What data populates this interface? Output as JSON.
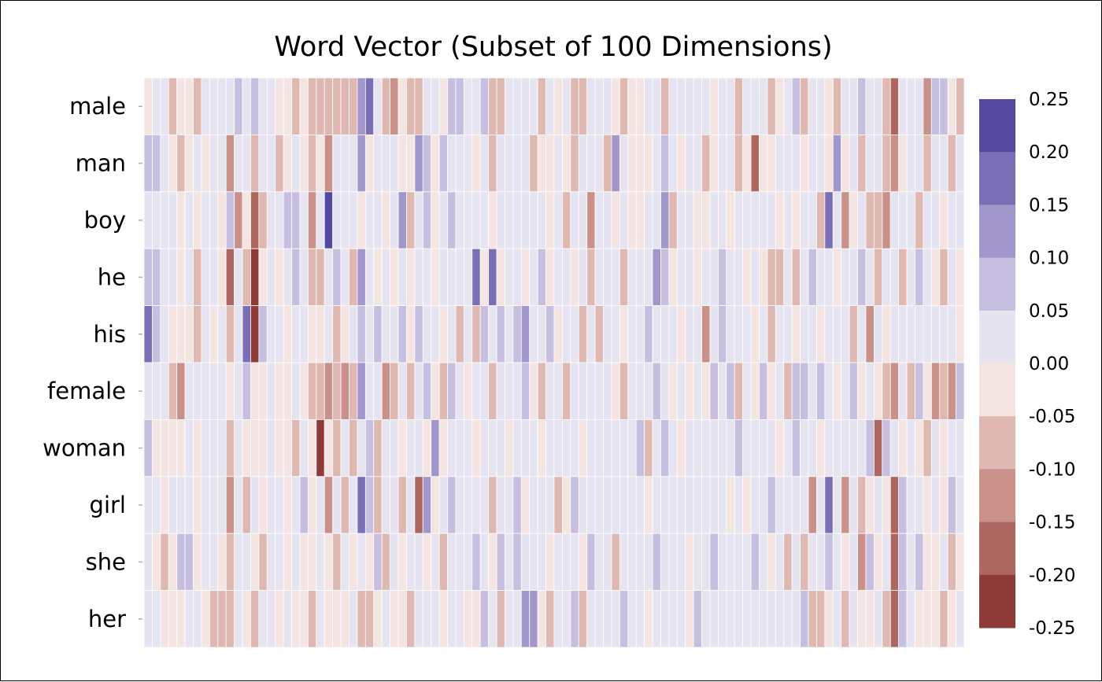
{
  "chart_data": {
    "type": "heatmap",
    "title": "Word Vector (Subset of 100 Dimensions)",
    "rows": [
      "male",
      "man",
      "boy",
      "he",
      "his",
      "female",
      "woman",
      "girl",
      "she",
      "her"
    ],
    "columns_count": 100,
    "values": [
      [
        0.0,
        0.02,
        0.02,
        -0.06,
        0.0,
        -0.04,
        -0.08,
        0.02,
        0.03,
        0.05,
        0.02,
        0.06,
        0.03,
        0.09,
        0.04,
        0.01,
        -0.02,
        -0.03,
        -0.07,
        -0.03,
        -0.05,
        -0.06,
        -0.08,
        -0.08,
        -0.07,
        -0.07,
        0.15,
        0.19,
        0.05,
        -0.08,
        -0.11,
        -0.02,
        -0.07,
        -0.06,
        0.04,
        0.02,
        0.0,
        0.06,
        0.06,
        0.01,
        0.03,
        0.06,
        -0.06,
        -0.05,
        0.03,
        0.02,
        0.02,
        0.02,
        -0.06,
        0.04,
        -0.01,
        0.03,
        -0.06,
        -0.05,
        0.02,
        0.01,
        0.01,
        -0.03,
        -0.06,
        -0.04,
        -0.01,
        0.03,
        0.04,
        -0.06,
        0.02,
        0.02,
        0.01,
        0.01,
        0.04,
        -0.02,
        0.02,
        0.03,
        -0.06,
        0.01,
        0.01,
        0.03,
        -0.07,
        0.0,
        0.04,
        0.06,
        -0.05,
        0.03,
        0.02,
        -0.04,
        -0.06,
        0.03,
        0.02,
        0.07,
        0.01,
        0.05,
        -0.06,
        -0.19,
        0.03,
        0.05,
        0.04,
        -0.1,
        0.06,
        0.07,
        -0.04,
        -0.07
      ],
      [
        0.08,
        0.06,
        0.01,
        -0.04,
        -0.06,
        -0.02,
        0.05,
        -0.03,
        0.01,
        0.02,
        -0.11,
        0.02,
        0.03,
        -0.05,
        0.04,
        0.01,
        -0.08,
        -0.04,
        0.01,
        -0.03,
        -0.09,
        -0.04,
        -0.13,
        0.01,
        0.04,
        0.02,
        0.13,
        -0.03,
        0.05,
        0.05,
        0.03,
        -0.02,
        -0.02,
        0.11,
        0.06,
        -0.03,
        0.07,
        0.03,
        0.02,
        0.03,
        -0.04,
        0.04,
        -0.06,
        0.02,
        0.01,
        0.02,
        0.04,
        -0.05,
        -0.02,
        -0.04,
        0.02,
        -0.02,
        -0.05,
        0.02,
        0.01,
        0.02,
        -0.05,
        0.12,
        0.01,
        -0.03,
        -0.02,
        0.0,
        0.02,
        0.06,
        0.02,
        -0.04,
        0.03,
        0.02,
        -0.06,
        -0.02,
        0.02,
        0.04,
        -0.06,
        -0.02,
        -0.15,
        -0.02,
        -0.04,
        0.02,
        0.04,
        0.02,
        -0.03,
        0.04,
        0.01,
        -0.04,
        0.13,
        -0.02,
        0.03,
        -0.09,
        0.01,
        0.02,
        -0.06,
        -0.14,
        -0.03,
        0.05,
        0.02,
        -0.05,
        0.01,
        0.03,
        -0.05,
        0.02
      ],
      [
        0.05,
        0.02,
        0.03,
        0.01,
        -0.02,
        0.02,
        -0.03,
        0.01,
        0.03,
        -0.02,
        0.1,
        -0.14,
        -0.02,
        -0.16,
        -0.06,
        0.04,
        0.03,
        0.07,
        0.06,
        0.02,
        -0.11,
        0.02,
        0.24,
        0.05,
        0.02,
        0.02,
        -0.03,
        0.02,
        0.02,
        -0.04,
        0.03,
        0.13,
        -0.05,
        0.02,
        0.09,
        -0.03,
        0.05,
        0.09,
        0.02,
        0.01,
        0.05,
        0.03,
        -0.02,
        0.03,
        0.01,
        0.03,
        0.02,
        0.01,
        0.04,
        -0.03,
        0.03,
        -0.05,
        0.02,
        0.02,
        -0.14,
        0.01,
        0.02,
        -0.01,
        0.02,
        -0.04,
        -0.02,
        0.03,
        0.04,
        0.12,
        -0.05,
        0.02,
        0.03,
        -0.02,
        -0.04,
        0.02,
        0.01,
        -0.04,
        0.02,
        0.03,
        0.03,
        0.02,
        0.02,
        -0.03,
        0.03,
        -0.04,
        0.04,
        0.03,
        -0.06,
        0.19,
        0.05,
        -0.12,
        -0.04,
        0.02,
        -0.05,
        -0.06,
        -0.1,
        0.02,
        0.02,
        0.02,
        -0.06,
        0.02,
        0.02,
        -0.02,
        0.02,
        0.01
      ],
      [
        0.1,
        0.06,
        0.01,
        0.02,
        -0.03,
        0.03,
        -0.06,
        0.05,
        0.01,
        -0.03,
        -0.15,
        0.02,
        -0.08,
        -0.2,
        -0.04,
        0.02,
        -0.03,
        0.03,
        0.06,
        0.02,
        -0.05,
        -0.05,
        0.03,
        0.06,
        0.02,
        -0.06,
        0.12,
        0.05,
        -0.04,
        0.04,
        -0.02,
        0.04,
        -0.03,
        0.02,
        0.03,
        -0.02,
        0.01,
        0.04,
        0.03,
        0.02,
        0.19,
        -0.02,
        0.16,
        -0.04,
        0.03,
        0.02,
        -0.03,
        0.01,
        0.07,
        -0.03,
        0.02,
        0.05,
        -0.02,
        0.02,
        -0.06,
        0.03,
        0.04,
        0.02,
        -0.05,
        0.02,
        0.01,
        0.02,
        0.11,
        0.1,
        -0.02,
        0.02,
        0.04,
        -0.03,
        0.03,
        0.03,
        0.06,
        0.02,
        0.04,
        -0.03,
        0.03,
        -0.02,
        -0.05,
        -0.08,
        0.02,
        -0.07,
        0.04,
        0.06,
        0.02,
        0.03,
        -0.03,
        0.02,
        0.04,
        0.06,
        0.03,
        -0.05,
        0.02,
        0.02,
        -0.06,
        0.05,
        0.07,
        0.02,
        -0.04,
        -0.07,
        0.03,
        -0.03
      ],
      [
        0.18,
        0.07,
        0.02,
        -0.02,
        -0.03,
        -0.04,
        -0.07,
        0.02,
        -0.04,
        0.02,
        -0.05,
        0.02,
        0.16,
        -0.2,
        0.06,
        0.02,
        0.01,
        -0.03,
        0.04,
        0.01,
        -0.04,
        -0.02,
        0.02,
        -0.06,
        -0.04,
        0.03,
        0.06,
        0.04,
        0.07,
        0.03,
        0.01,
        0.06,
        -0.03,
        0.06,
        0.02,
        0.01,
        -0.02,
        0.03,
        -0.06,
        0.02,
        -0.05,
        0.1,
        0.03,
        0.06,
        0.05,
        0.07,
        0.11,
        0.04,
        0.02,
        0.06,
        -0.03,
        0.01,
        0.02,
        -0.05,
        0.02,
        -0.07,
        0.04,
        0.01,
        -0.02,
        0.04,
        0.02,
        0.06,
        0.01,
        0.03,
        0.04,
        -0.02,
        0.04,
        0.02,
        -0.14,
        0.02,
        0.06,
        0.03,
        0.01,
        0.04,
        -0.02,
        0.02,
        -0.06,
        0.02,
        0.02,
        -0.03,
        0.02,
        0.04,
        -0.03,
        0.05,
        0.02,
        0.02,
        -0.06,
        0.01,
        -0.1,
        0.02,
        -0.02,
        0.03,
        0.01,
        0.02,
        0.03,
        0.05,
        0.02,
        0.02,
        0.04,
        -0.04
      ],
      [
        0.02,
        0.02,
        0.02,
        -0.06,
        -0.14,
        0.02,
        0.02,
        0.01,
        0.02,
        0.02,
        -0.02,
        0.02,
        0.06,
        -0.02,
        -0.03,
        0.02,
        -0.02,
        -0.03,
        0.01,
        -0.03,
        -0.05,
        -0.06,
        -0.1,
        -0.07,
        -0.12,
        -0.08,
        0.13,
        0.04,
        0.02,
        -0.1,
        -0.06,
        0.02,
        -0.05,
        0.04,
        0.06,
        -0.03,
        -0.06,
        0.06,
        0.02,
        -0.04,
        0.05,
        0.04,
        -0.07,
        0.02,
        0.02,
        0.04,
        0.06,
        -0.02,
        -0.06,
        0.02,
        0.05,
        -0.05,
        0.02,
        0.01,
        0.04,
        0.03,
        0.05,
        -0.03,
        -0.05,
        0.02,
        0.01,
        0.04,
        0.07,
        0.03,
        -0.02,
        0.05,
        -0.04,
        0.02,
        -0.03,
        0.06,
        0.02,
        0.06,
        -0.05,
        0.02,
        -0.02,
        0.06,
        -0.04,
        0.02,
        -0.06,
        0.06,
        0.08,
        0.05,
        0.06,
        0.02,
        -0.04,
        0.05,
        0.07,
        -0.04,
        0.05,
        -0.03,
        -0.05,
        -0.14,
        0.02,
        -0.08,
        0.07,
        -0.03,
        -0.13,
        -0.08,
        -0.1,
        0.07
      ],
      [
        0.07,
        -0.02,
        -0.02,
        -0.03,
        -0.03,
        0.02,
        -0.02,
        0.02,
        0.02,
        0.01,
        -0.06,
        0.03,
        -0.01,
        -0.02,
        -0.04,
        0.04,
        -0.02,
        -0.03,
        -0.05,
        0.01,
        -0.02,
        -0.2,
        -0.03,
        -0.05,
        0.05,
        -0.06,
        0.05,
        0.1,
        -0.07,
        0.03,
        0.01,
        -0.02,
        0.04,
        0.02,
        -0.04,
        0.11,
        -0.02,
        0.05,
        0.02,
        0.03,
        -0.04,
        0.02,
        0.02,
        0.04,
        -0.02,
        0.01,
        0.05,
        0.02,
        -0.02,
        0.03,
        0.02,
        0.02,
        0.05,
        -0.03,
        0.02,
        0.02,
        0.03,
        0.02,
        0.01,
        0.03,
        0.06,
        -0.06,
        0.02,
        0.08,
        0.04,
        -0.02,
        0.02,
        0.05,
        0.02,
        0.04,
        0.02,
        0.03,
        0.06,
        0.02,
        0.02,
        0.02,
        0.04,
        -0.03,
        0.02,
        0.06,
        0.02,
        0.04,
        -0.02,
        0.05,
        0.02,
        0.04,
        0.02,
        0.02,
        0.06,
        -0.16,
        0.06,
        0.04,
        -0.03,
        0.05,
        -0.04,
        -0.06,
        0.04,
        -0.03,
        0.02,
        0.04
      ],
      [
        0.02,
        0.02,
        -0.02,
        0.01,
        0.02,
        0.02,
        -0.04,
        0.01,
        0.02,
        0.02,
        -0.13,
        0.02,
        -0.06,
        0.01,
        -0.03,
        0.02,
        0.03,
        -0.02,
        0.01,
        0.06,
        -0.02,
        0.02,
        -0.13,
        0.02,
        -0.06,
        0.04,
        0.18,
        0.06,
        -0.06,
        0.03,
        0.02,
        -0.07,
        0.01,
        -0.15,
        0.15,
        -0.04,
        0.02,
        0.1,
        0.04,
        0.01,
        0.05,
        0.02,
        -0.06,
        0.02,
        0.01,
        0.06,
        -0.02,
        0.01,
        0.03,
        0.02,
        -0.05,
        -0.02,
        0.06,
        0.02,
        0.01,
        0.04,
        0.03,
        0.02,
        0.04,
        0.02,
        0.02,
        -0.02,
        0.05,
        0.03,
        0.02,
        0.05,
        0.04,
        0.02,
        0.01,
        0.03,
        0.02,
        -0.03,
        0.03,
        -0.02,
        0.02,
        0.02,
        0.06,
        0.02,
        0.01,
        0.04,
        0.02,
        -0.12,
        0.03,
        0.17,
        0.05,
        -0.12,
        0.02,
        -0.06,
        -0.03,
        0.02,
        -0.03,
        -0.19,
        0.06,
        0.03,
        0.05,
        -0.04,
        0.02,
        -0.03,
        0.07,
        0.04
      ],
      [
        0.02,
        -0.02,
        -0.08,
        -0.02,
        0.06,
        0.08,
        -0.03,
        0.02,
        0.05,
        -0.03,
        -0.05,
        0.01,
        0.02,
        -0.03,
        -0.06,
        0.02,
        0.03,
        -0.03,
        0.04,
        -0.02,
        -0.02,
        0.05,
        -0.04,
        -0.06,
        0.02,
        -0.03,
        0.04,
        -0.02,
        0.06,
        -0.05,
        0.02,
        -0.03,
        0.01,
        0.04,
        -0.04,
        0.02,
        -0.06,
        0.02,
        0.01,
        0.03,
        0.08,
        0.02,
        -0.03,
        0.06,
        0.02,
        0.1,
        0.03,
        0.02,
        0.05,
        -0.04,
        0.02,
        0.03,
        0.01,
        -0.02,
        0.06,
        0.02,
        0.03,
        -0.06,
        0.02,
        0.04,
        0.02,
        0.03,
        0.06,
        0.01,
        0.02,
        0.04,
        -0.03,
        0.03,
        0.02,
        0.06,
        0.02,
        0.05,
        0.04,
        0.02,
        0.06,
        0.02,
        -0.03,
        0.04,
        -0.05,
        0.03,
        -0.07,
        0.02,
        0.04,
        0.1,
        0.04,
        -0.03,
        0.05,
        -0.1,
        0.06,
        -0.04,
        0.04,
        -0.19,
        0.1,
        0.02,
        0.06,
        -0.04,
        -0.03,
        0.02,
        -0.05,
        -0.02
      ],
      [
        0.05,
        0.01,
        -0.03,
        -0.04,
        -0.03,
        0.02,
        0.02,
        -0.03,
        -0.05,
        -0.09,
        -0.09,
        0.02,
        -0.04,
        -0.05,
        0.02,
        0.04,
        -0.03,
        0.01,
        -0.02,
        -0.03,
        -0.06,
        0.03,
        -0.04,
        -0.02,
        -0.03,
        0.02,
        -0.05,
        -0.06,
        -0.03,
        0.02,
        -0.02,
        -0.04,
        -0.06,
        0.04,
        0.02,
        0.01,
        -0.03,
        0.02,
        0.03,
        -0.04,
        -0.02,
        0.06,
        0.02,
        -0.05,
        0.03,
        0.02,
        0.11,
        0.11,
        -0.04,
        -0.06,
        0.02,
        0.05,
        0.07,
        -0.05,
        0.02,
        0.02,
        0.04,
        0.02,
        0.06,
        0.02,
        0.03,
        -0.03,
        0.02,
        0.05,
        0.02,
        0.02,
        -0.03,
        0.06,
        0.01,
        0.02,
        0.05,
        0.02,
        0.01,
        0.04,
        0.02,
        0.02,
        0.03,
        0.02,
        0.04,
        0.02,
        0.1,
        -0.06,
        -0.08,
        -0.04,
        0.02,
        -0.06,
        0.01,
        -0.04,
        -0.03,
        0.02,
        -0.05,
        -0.15,
        0.1,
        0.03,
        -0.03,
        -0.04,
        -0.02,
        -0.06,
        -0.03,
        0.02
      ]
    ],
    "vmin": -0.25,
    "vmax": 0.25,
    "colorbar": {
      "ticks": [
        "0.25",
        "0.20",
        "0.15",
        "0.10",
        "0.05",
        "0.00",
        "-0.05",
        "-0.10",
        "-0.15",
        "-0.20",
        "-0.25"
      ],
      "bins": [
        {
          "max": 0.25,
          "color": "#5349a0"
        },
        {
          "max": 0.2,
          "color": "#7a6fb5"
        },
        {
          "max": 0.15,
          "color": "#a197cb"
        },
        {
          "max": 0.1,
          "color": "#c6bfe0"
        },
        {
          "max": 0.05,
          "color": "#e7e4f2"
        },
        {
          "max": 0.0,
          "color": "#f4e5e3"
        },
        {
          "max": -0.05,
          "color": "#dfb8b2"
        },
        {
          "max": -0.1,
          "color": "#c9918a"
        },
        {
          "max": -0.15,
          "color": "#ad6760"
        },
        {
          "max": -0.2,
          "color": "#8e3a36"
        }
      ]
    }
  }
}
